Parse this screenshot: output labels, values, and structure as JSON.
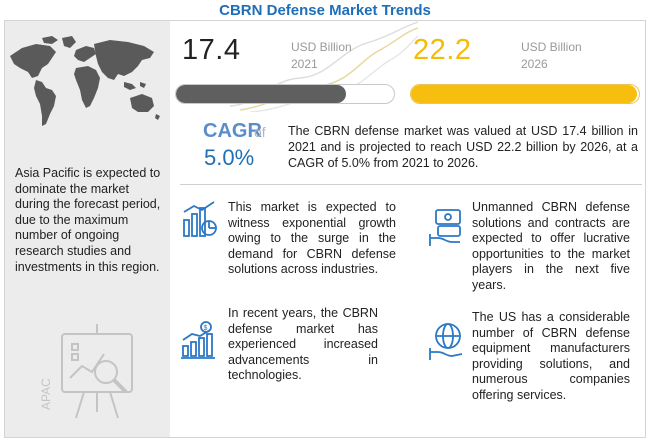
{
  "title": "CBRN Defense  Market Trends",
  "kpi_2021": {
    "value": "17.4",
    "unit": "USD Billion",
    "year": "2021",
    "bar_fill_fraction": 0.78
  },
  "kpi_2026": {
    "value": "22.2",
    "unit": "USD Billion",
    "year": "2026",
    "bar_fill_fraction": 0.99
  },
  "cagr": {
    "label": "CAGR",
    "of": "of",
    "value": "5.0%",
    "description": "The CBRN defense market was valued at USD 17.4 billion in 2021 and is projected to reach USD 22.2 billion by 2026, at a CAGR of 5.0% from 2021 to 2026."
  },
  "region": {
    "text": "Asia Pacific is expected to dominate the market during the forecast period, due to the maximum number of ongoing research studies and investments in this region.",
    "tag": "APAC"
  },
  "cards": [
    {
      "icon": "growth-chart-icon",
      "text": "This market is expected to witness exponential growth owing to the surge in the demand for CBRN defense solutions across industries."
    },
    {
      "icon": "money-hand-icon",
      "text": "Unmanned CBRN defense solutions and contracts are expected to offer lucrative opportunities to the market players in the next five years."
    },
    {
      "icon": "dollar-bar-chart-icon",
      "text": "In recent years, the CBRN defense market has experienced increased advancements in technologies."
    },
    {
      "icon": "globe-hand-icon",
      "text": "The US has a considerable number of CBRN defense equipment manufacturers providing solutions, and numerous companies offering services."
    }
  ],
  "colors": {
    "title": "#1f6fb8",
    "accent_yellow": "#f7bd0f",
    "bar_grey": "#5f5f5f",
    "cagr_blue": "#1f6fb8"
  }
}
